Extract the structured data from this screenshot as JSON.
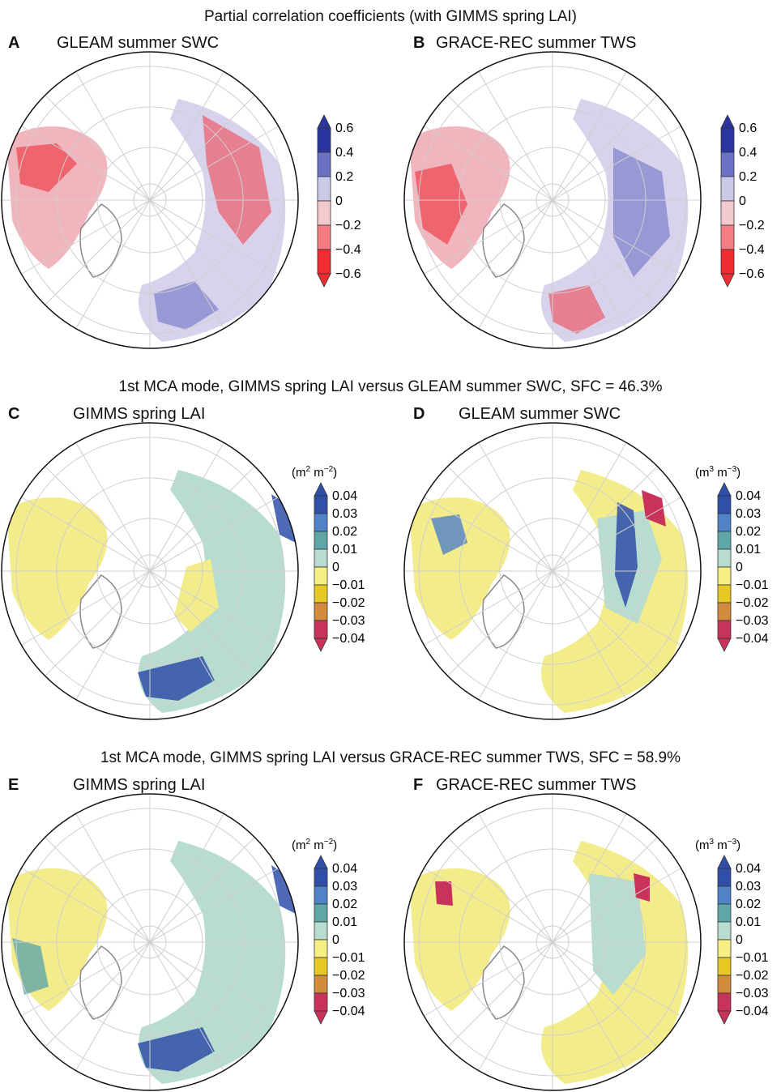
{
  "figure": {
    "row_titles": [
      "Partial correlation coefficients (with GIMMS spring LAI)",
      "1st MCA mode, GIMMS spring LAI versus GLEAM summer SWC, SFC = 46.3%",
      "1st MCA mode, GIMMS spring LAI versus GRACE-REC summer TWS, SFC = 58.9%"
    ],
    "panels": [
      {
        "letter": "A",
        "title": "GLEAM summer SWC"
      },
      {
        "letter": "B",
        "title": "GRACE-REC summer TWS"
      },
      {
        "letter": "C",
        "title": "GIMMS spring LAI"
      },
      {
        "letter": "D",
        "title": "GLEAM summer SWC"
      },
      {
        "letter": "E",
        "title": "GIMMS spring LAI"
      },
      {
        "letter": "F",
        "title": "GRACE-REC summer TWS"
      }
    ]
  },
  "colorbars": {
    "correlation": {
      "ticks": [
        "0.6",
        "0.4",
        "0.2",
        "0",
        "−0.2",
        "−0.4",
        "−0.6"
      ],
      "colors": [
        "#2b35a0",
        "#6b72c4",
        "#c9c9e8",
        "#f2c9cd",
        "#f47d83",
        "#ee2c32"
      ]
    },
    "mca": {
      "ticks": [
        "0.04",
        "0.03",
        "0.02",
        "0.01",
        "0",
        "−0.01",
        "−0.02",
        "−0.03",
        "−0.04"
      ],
      "colors": [
        "#2f4fa8",
        "#4f82c7",
        "#5fa6a8",
        "#b8dccf",
        "#f6ef84",
        "#e7c824",
        "#d28a3c",
        "#c9325a"
      ],
      "unit_lai": {
        "base": "(m",
        "e1": "2",
        "mid": " m",
        "e2": "−2",
        "end": ")"
      },
      "unit_vol": {
        "base": "(m",
        "e1": "3",
        "mid": " m",
        "e2": "−3",
        "end": ")"
      }
    }
  }
}
